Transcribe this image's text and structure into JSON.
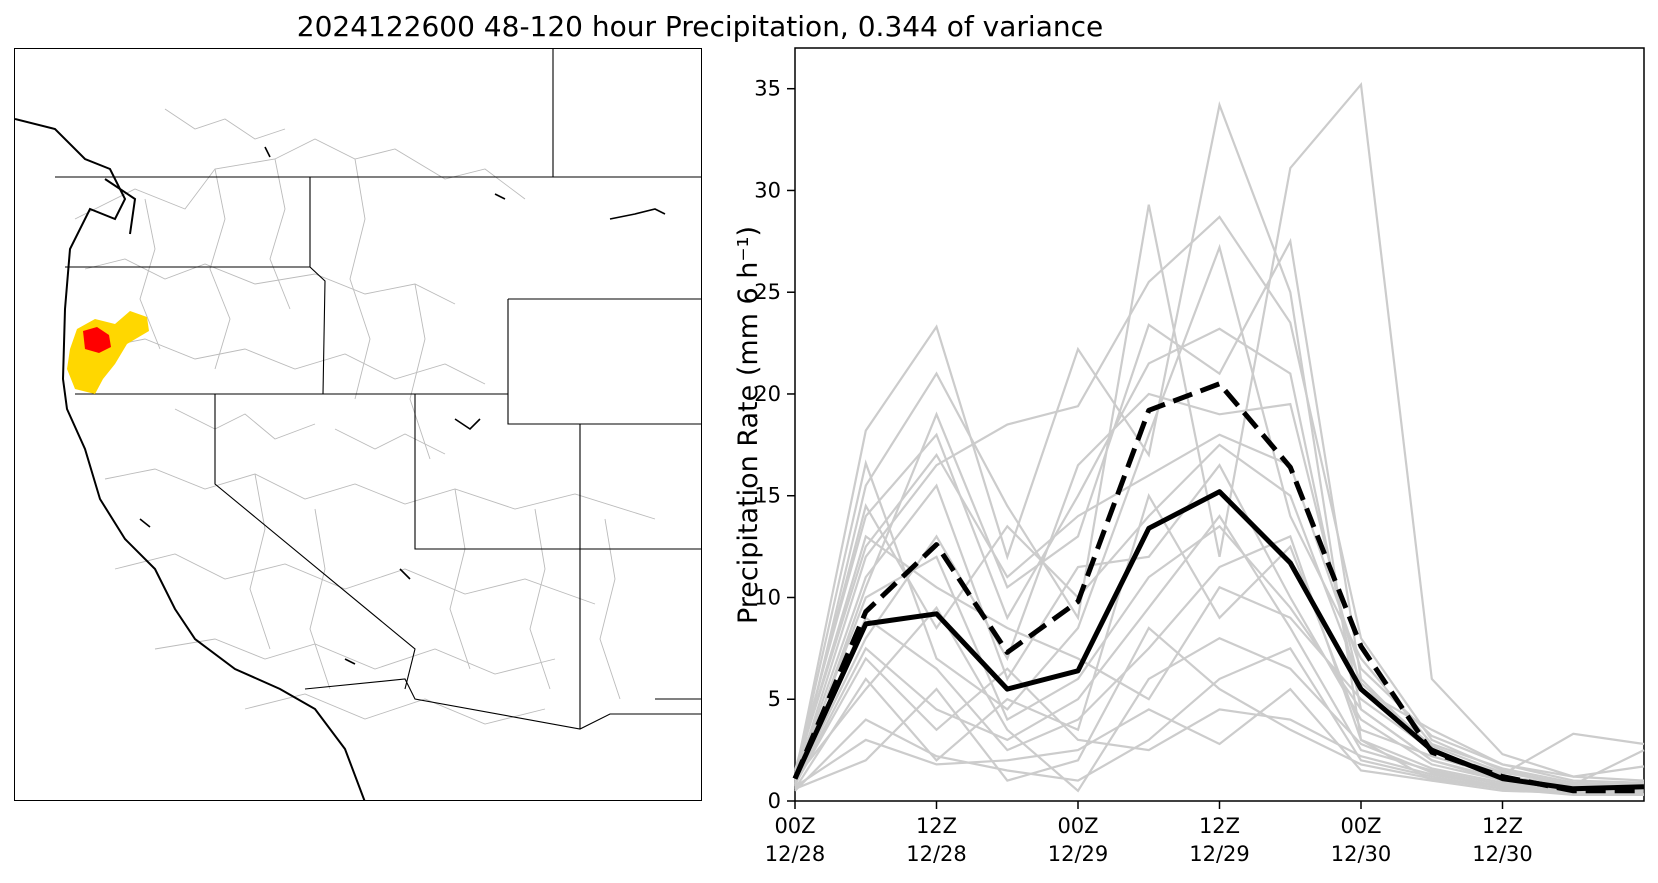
{
  "title": "2024122600 48-120 hour Precipitation, 0.344 of variance",
  "colors": {
    "member_line": "#cccccc",
    "mean_line": "#000000",
    "highlight_red": "#ff0000",
    "highlight_yellow": "#ffd700",
    "basin_outline": "#bbbbbb",
    "coast": "#000000"
  },
  "chart_data": [
    {
      "type": "map",
      "region": "Western United States",
      "highlighted_basins": [
        {
          "color": "red"
        },
        {
          "color": "gold"
        }
      ]
    },
    {
      "type": "line",
      "title": "",
      "xlabel": "",
      "ylabel": "Precipitation Rate (mm 6 h⁻¹)",
      "ylim": [
        0,
        37
      ],
      "yticks": [
        0,
        5,
        10,
        15,
        20,
        25,
        30,
        35
      ],
      "x": [
        0,
        6,
        12,
        18,
        24,
        30,
        36,
        42,
        48,
        54,
        60,
        66,
        72
      ],
      "xticks": [
        {
          "x": 0,
          "line1": "00Z",
          "line2": "12/28"
        },
        {
          "x": 12,
          "line1": "12Z",
          "line2": "12/28"
        },
        {
          "x": 24,
          "line1": "00Z",
          "line2": "12/29"
        },
        {
          "x": 36,
          "line1": "12Z",
          "line2": "12/29"
        },
        {
          "x": 48,
          "line1": "00Z",
          "line2": "12/30"
        },
        {
          "x": 60,
          "line1": "12Z",
          "line2": "12/30"
        }
      ],
      "xlim": [
        0,
        72
      ],
      "grid": false,
      "series": [
        {
          "role": "mean",
          "style": "solid",
          "values": [
            1.1,
            8.7,
            9.2,
            5.5,
            6.4,
            13.4,
            15.2,
            11.7,
            5.5,
            2.5,
            1.1,
            0.6,
            0.7
          ]
        },
        {
          "role": "mean-upper",
          "style": "dashed",
          "values": [
            1.1,
            9.3,
            12.6,
            7.3,
            9.8,
            19.2,
            20.5,
            16.4,
            7.6,
            2.4,
            1.2,
            0.5,
            0.5
          ]
        },
        {
          "role": "member",
          "values": [
            1.2,
            18.2,
            23.3,
            12.0,
            22.2,
            17.0,
            34.2,
            25.0,
            3.0,
            1.0,
            0.8,
            0.6,
            0.6
          ]
        },
        {
          "role": "member",
          "values": [
            0.8,
            15.5,
            21.0,
            14.5,
            9.0,
            29.3,
            12.0,
            31.1,
            35.2,
            6.0,
            2.3,
            1.2,
            1.0
          ]
        },
        {
          "role": "member",
          "values": [
            1.0,
            12.0,
            16.5,
            18.5,
            19.4,
            25.5,
            28.7,
            23.5,
            8.0,
            3.0,
            1.5,
            0.8,
            2.5
          ]
        },
        {
          "role": "member",
          "values": [
            0.7,
            10.5,
            19.0,
            10.5,
            13.0,
            23.4,
            21.0,
            27.5,
            6.0,
            2.5,
            1.3,
            3.3,
            2.8
          ]
        },
        {
          "role": "member",
          "values": [
            1.5,
            14.0,
            18.0,
            9.0,
            15.0,
            21.5,
            23.2,
            21.0,
            4.5,
            2.0,
            1.0,
            0.7,
            0.6
          ]
        },
        {
          "role": "member",
          "values": [
            0.9,
            8.0,
            13.0,
            7.0,
            16.5,
            20.0,
            19.0,
            19.5,
            5.5,
            3.5,
            1.8,
            1.2,
            1.7
          ]
        },
        {
          "role": "member",
          "values": [
            1.2,
            16.6,
            7.0,
            4.5,
            8.5,
            18.0,
            27.2,
            14.0,
            7.0,
            2.8,
            1.6,
            0.9,
            0.8
          ]
        },
        {
          "role": "member",
          "values": [
            0.6,
            6.0,
            2.0,
            5.0,
            3.5,
            15.0,
            9.0,
            12.5,
            3.5,
            2.2,
            1.2,
            0.8,
            0.7
          ]
        },
        {
          "role": "member",
          "values": [
            1.0,
            11.0,
            15.5,
            6.0,
            11.5,
            12.0,
            16.5,
            10.0,
            4.0,
            1.8,
            1.0,
            0.6,
            0.5
          ]
        },
        {
          "role": "member",
          "values": [
            0.8,
            7.5,
            4.5,
            3.0,
            5.0,
            9.5,
            14.0,
            8.5,
            2.5,
            1.5,
            0.8,
            0.5,
            0.4
          ]
        },
        {
          "role": "member",
          "values": [
            1.3,
            13.0,
            10.5,
            8.5,
            7.0,
            5.0,
            10.5,
            9.0,
            5.0,
            2.5,
            1.2,
            0.7,
            0.6
          ]
        },
        {
          "role": "member",
          "values": [
            0.5,
            4.0,
            2.2,
            1.5,
            1.0,
            3.0,
            6.0,
            7.5,
            2.0,
            1.2,
            0.6,
            0.4,
            0.3
          ]
        },
        {
          "role": "member",
          "values": [
            0.9,
            9.0,
            6.5,
            2.5,
            4.0,
            7.5,
            11.5,
            13.0,
            3.0,
            1.6,
            0.9,
            0.5,
            0.5
          ]
        },
        {
          "role": "member",
          "values": [
            1.1,
            5.5,
            9.5,
            3.5,
            0.5,
            6.0,
            8.0,
            6.5,
            2.8,
            1.4,
            0.7,
            0.5,
            0.4
          ]
        },
        {
          "role": "member",
          "values": [
            0.7,
            3.0,
            1.8,
            2.0,
            2.5,
            4.5,
            2.8,
            5.5,
            1.5,
            1.0,
            0.5,
            0.4,
            0.3
          ]
        },
        {
          "role": "member",
          "values": [
            1.4,
            12.5,
            17.0,
            11.0,
            14.0,
            16.0,
            18.0,
            16.5,
            6.5,
            3.2,
            1.8,
            1.0,
            0.9
          ]
        },
        {
          "role": "member",
          "values": [
            0.8,
            7.0,
            3.5,
            6.5,
            3.0,
            2.5,
            4.5,
            4.0,
            2.2,
            1.3,
            0.7,
            0.4,
            0.4
          ]
        },
        {
          "role": "member",
          "values": [
            1.0,
            10.0,
            12.0,
            4.0,
            6.0,
            11.0,
            13.5,
            9.5,
            4.5,
            2.0,
            1.1,
            0.6,
            0.5
          ]
        },
        {
          "role": "member",
          "values": [
            0.6,
            2.0,
            5.5,
            1.0,
            2.0,
            8.5,
            5.5,
            3.5,
            1.8,
            1.1,
            0.6,
            0.3,
            0.3
          ]
        },
        {
          "role": "member",
          "values": [
            1.2,
            14.5,
            8.5,
            13.5,
            10.0,
            14.0,
            17.5,
            15.0,
            5.8,
            2.7,
            1.4,
            0.8,
            0.7
          ]
        }
      ]
    }
  ]
}
